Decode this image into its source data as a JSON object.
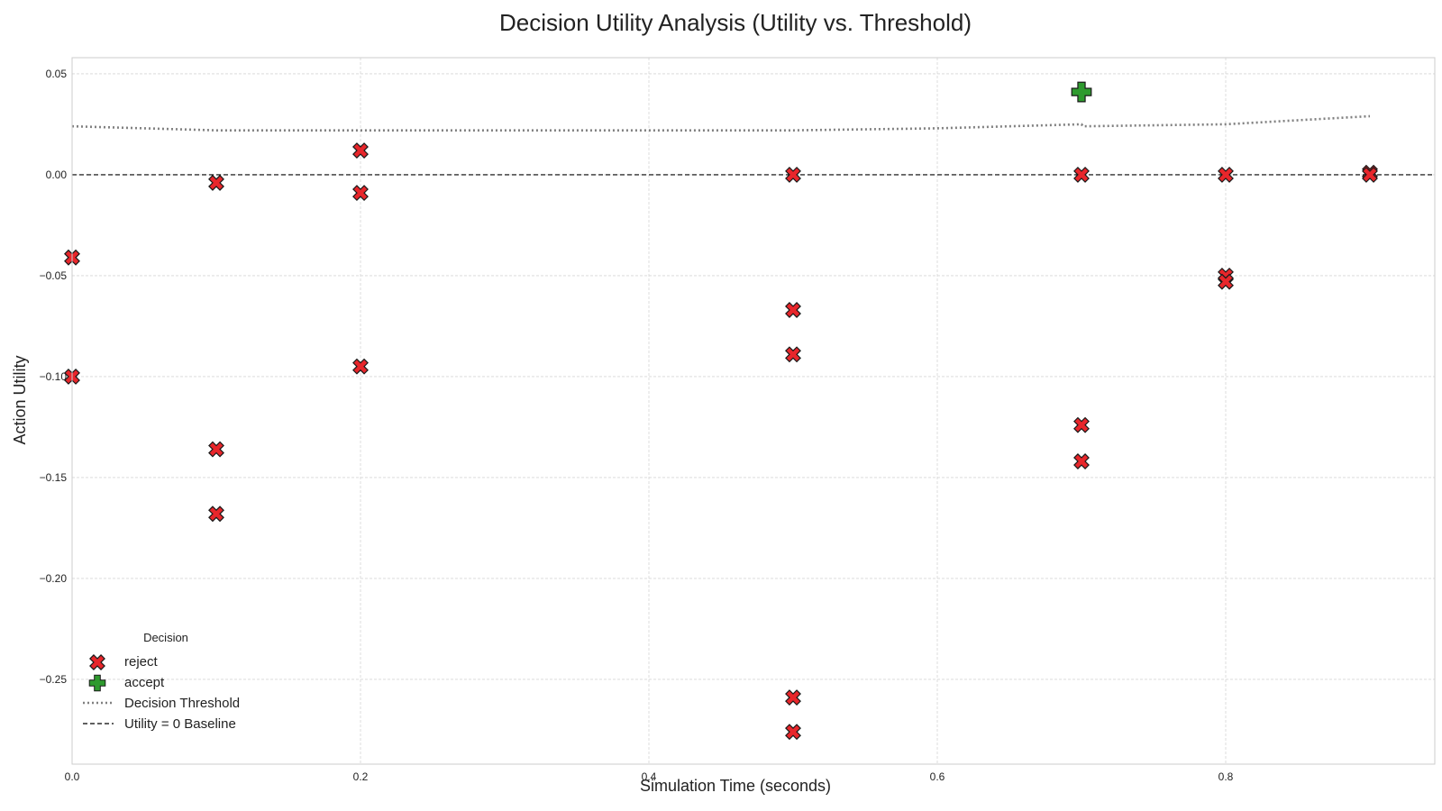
{
  "chart_data": {
    "type": "scatter",
    "title": "Decision Utility Analysis (Utility vs. Threshold)",
    "xlabel": "Simulation Time (seconds)",
    "ylabel": "Action Utility",
    "xlim": [
      0.0,
      0.945
    ],
    "ylim": [
      -0.292,
      0.058
    ],
    "xticks": [
      0.0,
      0.2,
      0.4,
      0.6,
      0.8
    ],
    "xtick_labels": [
      "0.0",
      "0.2",
      "0.4",
      "0.6",
      "0.8"
    ],
    "yticks": [
      0.05,
      0.0,
      -0.05,
      -0.1,
      -0.15,
      -0.2,
      -0.25
    ],
    "ytick_labels": [
      "0.05",
      "0.00",
      "−0.05",
      "−0.10",
      "−0.15",
      "−0.20",
      "−0.25"
    ],
    "grid": true,
    "legend": {
      "title": "Decision",
      "placement": "lower-left",
      "entries": [
        "reject",
        "accept",
        "Decision Threshold",
        "Utility = 0 Baseline"
      ]
    },
    "series": [
      {
        "name": "reject",
        "marker": "X",
        "color": "#e8262b",
        "points": [
          [
            0.0,
            -0.041
          ],
          [
            0.0,
            -0.1
          ],
          [
            0.1,
            -0.004
          ],
          [
            0.1,
            -0.136
          ],
          [
            0.1,
            -0.168
          ],
          [
            0.2,
            0.012
          ],
          [
            0.2,
            -0.009
          ],
          [
            0.2,
            -0.095
          ],
          [
            0.5,
            0.0
          ],
          [
            0.5,
            -0.067
          ],
          [
            0.5,
            -0.089
          ],
          [
            0.5,
            -0.259
          ],
          [
            0.5,
            -0.276
          ],
          [
            0.7,
            0.0
          ],
          [
            0.7,
            -0.124
          ],
          [
            0.7,
            -0.142
          ],
          [
            0.8,
            0.0
          ],
          [
            0.8,
            -0.05
          ],
          [
            0.8,
            -0.053
          ],
          [
            0.9,
            0.001
          ],
          [
            0.9,
            0.0
          ]
        ]
      },
      {
        "name": "accept",
        "marker": "P",
        "color": "#2e9a2e",
        "points": [
          [
            0.7,
            0.041
          ]
        ]
      },
      {
        "name": "Decision Threshold",
        "line": "dotted",
        "color": "#808080",
        "points": [
          [
            0.0,
            0.024
          ],
          [
            0.1,
            0.022
          ],
          [
            0.2,
            0.022
          ],
          [
            0.3,
            0.022
          ],
          [
            0.4,
            0.022
          ],
          [
            0.5,
            0.022
          ],
          [
            0.6,
            0.023
          ],
          [
            0.7,
            0.025
          ],
          [
            0.701,
            0.024
          ],
          [
            0.8,
            0.025
          ],
          [
            0.9,
            0.029
          ]
        ]
      },
      {
        "name": "Utility = 0 Baseline",
        "line": "dashed",
        "color": "#000000",
        "y": 0.0
      }
    ]
  }
}
